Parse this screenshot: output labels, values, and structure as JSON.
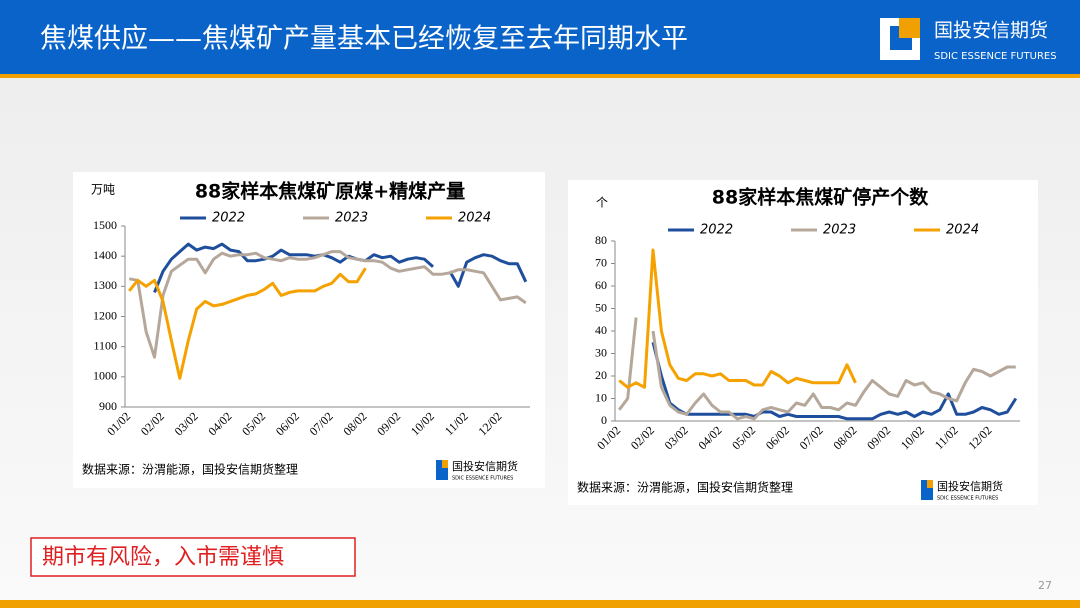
{
  "header": {
    "title": "焦煤供应——焦煤矿产量基本已经恢复至去年同期水平",
    "logo_cn": "国投安信期货",
    "logo_en": "SDIC ESSENCE FUTURES"
  },
  "chart_data": [
    {
      "type": "line",
      "title": "88家样本焦煤矿原煤+精煤产量",
      "y_label": "万吨",
      "source": "数据来源：汾渭能源，国投安信期货整理",
      "logo_cn": "国投安信期货",
      "logo_en": "SDIC ESSENCE FUTURES",
      "categories": [
        "01/02",
        null,
        null,
        null,
        "02/02",
        null,
        null,
        null,
        "03/02",
        null,
        null,
        null,
        "04/02",
        null,
        null,
        null,
        "05/02",
        null,
        null,
        null,
        "06/02",
        null,
        null,
        null,
        "07/02",
        null,
        null,
        null,
        "08/02",
        null,
        null,
        null,
        "09/02",
        null,
        null,
        null,
        "10/02",
        null,
        null,
        null,
        "11/02",
        null,
        null,
        null,
        "12/02",
        null,
        null,
        null
      ],
      "series": [
        {
          "name": "2022",
          "color": "#1f4e9c",
          "values": [
            null,
            null,
            null,
            1280,
            1350,
            1390,
            1415,
            1440,
            1420,
            1430,
            1425,
            1440,
            1420,
            1415,
            1385,
            1385,
            1390,
            1400,
            1420,
            1405,
            1405,
            1405,
            1400,
            1405,
            1395,
            1380,
            1400,
            1390,
            1385,
            1405,
            1395,
            1400,
            1380,
            1390,
            1395,
            1390,
            1365,
            null,
            1350,
            1300,
            1380,
            1395,
            1405,
            1400,
            1385,
            1375,
            1375,
            1315
          ]
        },
        {
          "name": "2023",
          "color": "#b5a89a",
          "values": [
            1325,
            1320,
            1150,
            1065,
            1270,
            1350,
            1370,
            1390,
            1390,
            1345,
            1390,
            1410,
            1400,
            1405,
            1405,
            1410,
            1395,
            1390,
            1385,
            1395,
            1390,
            1390,
            1395,
            1405,
            1415,
            1415,
            1395,
            1390,
            1385,
            1385,
            1380,
            1360,
            1350,
            1355,
            1360,
            1365,
            1340,
            1340,
            1345,
            1355,
            1355,
            1350,
            1345,
            1300,
            1255,
            1260,
            1265,
            1245
          ]
        },
        {
          "name": "2024",
          "color": "#f5a200",
          "values": [
            1285,
            1320,
            1300,
            1320,
            1250,
            1120,
            995,
            1120,
            1225,
            1250,
            1235,
            1240,
            1250,
            1260,
            1270,
            1275,
            1290,
            1310,
            1270,
            1280,
            1285,
            1285,
            1285,
            1300,
            1310,
            1340,
            1315,
            1315,
            1360,
            null,
            null,
            null,
            null,
            null,
            null,
            null,
            null,
            null,
            null,
            null,
            null,
            null,
            null,
            null,
            null,
            null,
            null,
            null
          ]
        }
      ],
      "ylim": [
        900,
        1500
      ],
      "yticks": [
        900,
        1000,
        1100,
        1200,
        1300,
        1400,
        1500
      ],
      "legend": "top"
    },
    {
      "type": "line",
      "title": "88家样本焦煤矿停产个数",
      "y_label": "个",
      "source": "数据来源：汾渭能源，国投安信期货整理",
      "logo_cn": "国投安信期货",
      "logo_en": "SDIC ESSENCE FUTURES",
      "categories": [
        "01/02",
        null,
        null,
        null,
        "02/02",
        null,
        null,
        null,
        "03/02",
        null,
        null,
        null,
        "04/02",
        null,
        null,
        null,
        "05/02",
        null,
        null,
        null,
        "06/02",
        null,
        null,
        null,
        "07/02",
        null,
        null,
        null,
        "08/02",
        null,
        null,
        null,
        "09/02",
        null,
        null,
        null,
        "10/02",
        null,
        null,
        null,
        "11/02",
        null,
        null,
        null,
        "12/02",
        null,
        null,
        null
      ],
      "series": [
        {
          "name": "2022",
          "color": "#1f4e9c",
          "values": [
            null,
            null,
            null,
            null,
            35,
            20,
            8,
            5,
            3,
            3,
            3,
            3,
            3,
            3,
            3,
            3,
            2,
            4,
            4,
            2,
            3,
            2,
            2,
            2,
            2,
            2,
            2,
            1,
            1,
            1,
            1,
            3,
            4,
            3,
            4,
            2,
            4,
            3,
            5,
            12,
            3,
            3,
            4,
            6,
            5,
            3,
            4,
            10
          ]
        },
        {
          "name": "2023",
          "color": "#b5a89a",
          "values": [
            5,
            10,
            46,
            null,
            40,
            15,
            7,
            4,
            3,
            8,
            12,
            7,
            4,
            4,
            1,
            2,
            1,
            5,
            6,
            5,
            4,
            8,
            7,
            12,
            6,
            6,
            5,
            8,
            7,
            13,
            18,
            15,
            12,
            11,
            18,
            16,
            17,
            13,
            12,
            10,
            9,
            17,
            23,
            22,
            20,
            22,
            24,
            24
          ]
        },
        {
          "name": "2024",
          "color": "#f5a200",
          "values": [
            18,
            15,
            17,
            15,
            76,
            40,
            25,
            19,
            18,
            21,
            21,
            20,
            21,
            18,
            18,
            18,
            16,
            16,
            22,
            20,
            17,
            19,
            18,
            17,
            17,
            17,
            17,
            25,
            17,
            null,
            null,
            null,
            null,
            null,
            null,
            null,
            null,
            null,
            null,
            null,
            null,
            null,
            null,
            null,
            null,
            null,
            null,
            null
          ]
        }
      ],
      "ylim": [
        0,
        80
      ],
      "yticks": [
        0,
        10,
        20,
        30,
        40,
        50,
        60,
        70,
        80
      ],
      "legend": "top"
    }
  ],
  "footer": {
    "warning": "期市有风险，入市需谨慎",
    "page": "27"
  }
}
